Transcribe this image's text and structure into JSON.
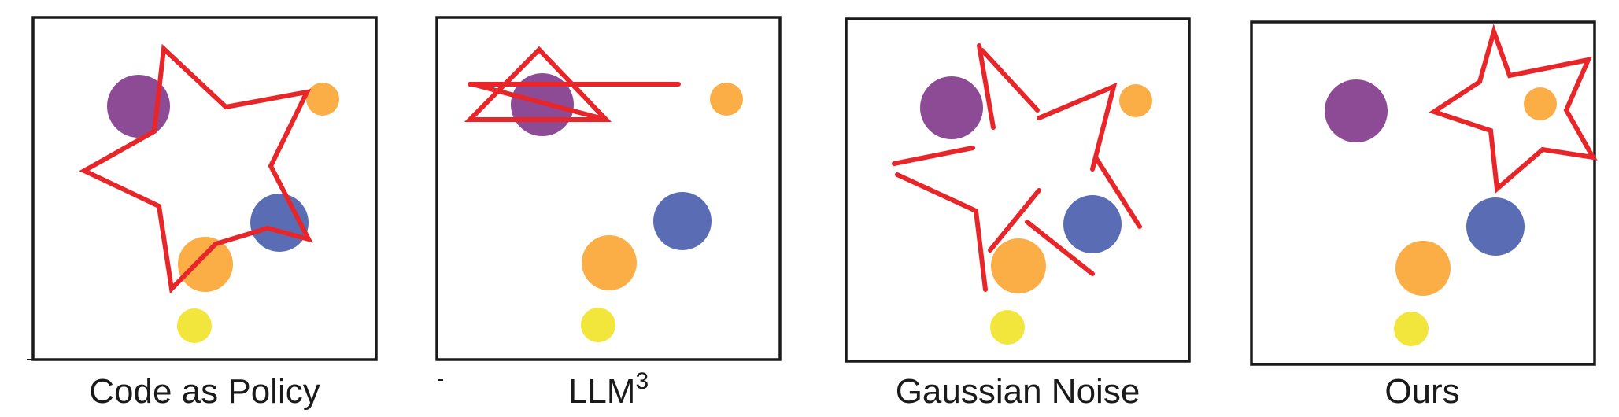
{
  "colors": {
    "purple": "#8d4b95",
    "blue": "#5a6db4",
    "orange": "#fbae45",
    "yellow": "#f2e53c",
    "red": "#e8262a",
    "frame": "#1a1a1a"
  },
  "panels": [
    {
      "caption": "Code as Policy",
      "circles": [
        {
          "object": "purple-circle",
          "color": "purple"
        },
        {
          "object": "small-orange-circle",
          "color": "orange"
        },
        {
          "object": "blue-circle",
          "color": "blue"
        },
        {
          "object": "large-orange-circle",
          "color": "orange"
        },
        {
          "object": "yellow-circle",
          "color": "yellow"
        }
      ],
      "trajectory": "distorted-star"
    },
    {
      "caption": "LLM",
      "caption_superscript": "3",
      "circles": [
        {
          "object": "purple-circle",
          "color": "purple"
        },
        {
          "object": "small-orange-circle",
          "color": "orange"
        },
        {
          "object": "blue-circle",
          "color": "blue"
        },
        {
          "object": "large-orange-circle",
          "color": "orange"
        },
        {
          "object": "yellow-circle",
          "color": "yellow"
        }
      ],
      "trajectory": "flattened-star"
    },
    {
      "caption": "Gaussian Noise",
      "circles": [
        {
          "object": "purple-circle",
          "color": "purple"
        },
        {
          "object": "small-orange-circle",
          "color": "orange"
        },
        {
          "object": "blue-circle",
          "color": "blue"
        },
        {
          "object": "large-orange-circle",
          "color": "orange"
        },
        {
          "object": "yellow-circle",
          "color": "yellow"
        }
      ],
      "trajectory": "broken-star-segments"
    },
    {
      "caption": "Ours",
      "circles": [
        {
          "object": "purple-circle",
          "color": "purple"
        },
        {
          "object": "small-orange-circle",
          "color": "orange"
        },
        {
          "object": "blue-circle",
          "color": "blue"
        },
        {
          "object": "large-orange-circle",
          "color": "orange"
        },
        {
          "object": "yellow-circle",
          "color": "yellow"
        }
      ],
      "trajectory": "clean-star-around-orange-circle"
    }
  ]
}
